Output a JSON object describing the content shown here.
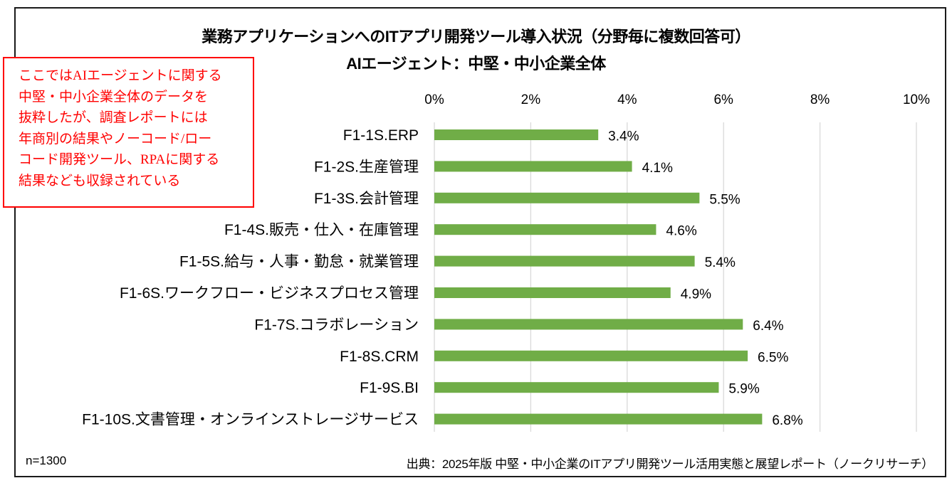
{
  "chart_data": {
    "type": "bar",
    "orientation": "horizontal",
    "title": "業務アプリケーションへのITアプリ開発ツール導入状況（分野毎に複数回答可）",
    "subtitle": "AIエージェント：中堅・中小企業全体",
    "xlabel": "",
    "ylabel": "",
    "xlim": [
      0,
      10
    ],
    "x_ticks": [
      0,
      2,
      4,
      6,
      8,
      10
    ],
    "x_tick_labels": [
      "0%",
      "2%",
      "4%",
      "6%",
      "8%",
      "10%"
    ],
    "x_axis_position": "top",
    "grid": true,
    "legend": "none",
    "bar_color": "#70ad47",
    "grid_color": "#d9d9d9",
    "categories": [
      "F1-1S.ERP",
      "F1-2S.生産管理",
      "F1-3S.会計管理",
      "F1-4S.販売・仕入・在庫管理",
      "F1-5S.給与・人事・勤怠・就業管理",
      "F1-6S.ワークフロー・ビジネスプロセス管理",
      "F1-7S.コラボレーション",
      "F1-8S.CRM",
      "F1-9S.BI",
      "F1-10S.文書管理・オンラインストレージサービス"
    ],
    "values": [
      3.4,
      4.1,
      5.5,
      4.6,
      5.4,
      4.9,
      6.4,
      6.5,
      5.9,
      6.8
    ],
    "value_labels": [
      "3.4%",
      "4.1%",
      "5.5%",
      "4.6%",
      "5.4%",
      "4.9%",
      "6.4%",
      "6.5%",
      "5.9%",
      "6.8%"
    ]
  },
  "annotation": {
    "color": "#ff0000",
    "lines": [
      "ここではAIエージェントに関する",
      "中堅・中小企業全体のデータを",
      "抜粋したが、調査レポートには",
      "年商別の結果やノーコード/ロー",
      "コード開発ツール、RPAに関する",
      "結果なども収録されている"
    ]
  },
  "footer": {
    "sample_size": "n=1300",
    "source": "出典：2025年版 中堅・中小企業のITアプリ開発ツール活用実態と展望レポート（ノークリサーチ）"
  }
}
